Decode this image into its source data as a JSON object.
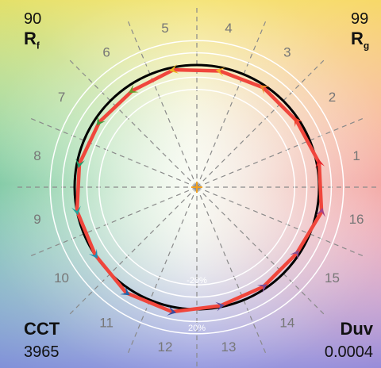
{
  "chart_data": {
    "type": "radar",
    "title": "",
    "metrics": {
      "rf_label": "R",
      "rf_sub": "f",
      "rf_value": "90",
      "rg_label": "R",
      "rg_sub": "g",
      "rg_value": "99",
      "cct_label": "CCT",
      "cct_value": "3965",
      "duv_label": "Duv",
      "duv_value": "0.0004"
    },
    "hue_bins": [
      "1",
      "2",
      "3",
      "4",
      "5",
      "6",
      "7",
      "8",
      "9",
      "10",
      "11",
      "12",
      "13",
      "14",
      "15",
      "16"
    ],
    "ring_labels": [
      "-20%",
      "20%"
    ],
    "reference_radius": 1.0,
    "series": [
      {
        "name": "",
        "color": "#f0463c",
        "points": [
          {
            "bin": 1,
            "r": 1.02
          },
          {
            "bin": 2,
            "r": 0.98
          },
          {
            "bin": 3,
            "r": 0.98
          },
          {
            "bin": 4,
            "r": 0.97
          },
          {
            "bin": 5,
            "r": 0.98
          },
          {
            "bin": 6,
            "r": 0.95
          },
          {
            "bin": 7,
            "r": 0.96
          },
          {
            "bin": 8,
            "r": 0.98
          },
          {
            "bin": 9,
            "r": 1.0
          },
          {
            "bin": 10,
            "r": 1.0
          },
          {
            "bin": 11,
            "r": 1.04
          },
          {
            "bin": 12,
            "r": 1.04
          },
          {
            "bin": 13,
            "r": 0.99
          },
          {
            "bin": 14,
            "r": 0.98
          },
          {
            "bin": 15,
            "r": 0.98
          },
          {
            "bin": 16,
            "r": 1.04
          }
        ]
      }
    ],
    "arrow_colors": [
      "#e8242a",
      "#ee3f2a",
      "#f0892a",
      "#f3b02a",
      "#e9b41e",
      "#6a9a2a",
      "#3e9a3a",
      "#1f9a6a",
      "#21a39b",
      "#1d8fb5",
      "#1f62a8",
      "#3b4c9e",
      "#5e4f9e",
      "#7a4b97",
      "#8b4c8e",
      "#a24286"
    ],
    "grid": true
  }
}
